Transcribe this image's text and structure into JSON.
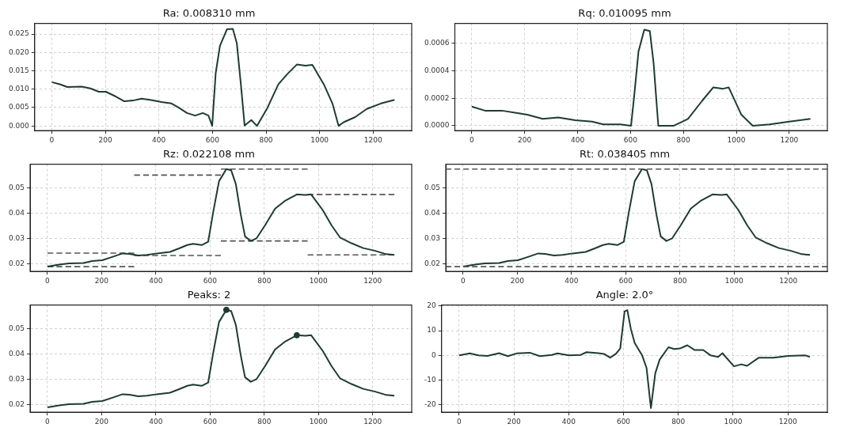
{
  "chart_data": [
    {
      "type": "line",
      "title": "Ra: 0.008310 mm",
      "marker": "none",
      "line_style": "solid",
      "grid": true,
      "x": [
        0,
        32,
        58,
        112,
        144,
        176,
        202,
        239,
        271,
        303,
        335,
        367,
        410,
        447,
        473,
        505,
        535,
        564,
        585,
        599,
        612,
        628,
        654,
        676,
        691,
        707,
        720,
        745,
        766,
        803,
        846,
        878,
        915,
        947,
        973,
        1016,
        1048,
        1071,
        1090,
        1133,
        1176,
        1229,
        1280
      ],
      "series": [
        {
          "color": "#1e3b32",
          "values": [
            0.0119,
            0.0113,
            0.0106,
            0.0107,
            0.0102,
            0.0093,
            0.0093,
            0.008,
            0.0067,
            0.0069,
            0.0074,
            0.0071,
            0.0065,
            0.0061,
            0.005,
            0.0035,
            0.0028,
            0.0035,
            0.0028,
            0.0,
            0.0143,
            0.0218,
            0.0263,
            0.0264,
            0.0225,
            0.0106,
            0.0001,
            0.0016,
            0.0,
            0.0046,
            0.0113,
            0.014,
            0.0167,
            0.0164,
            0.0166,
            0.0113,
            0.0061,
            0.0,
            0.001,
            0.0024,
            0.0046,
            0.0061,
            0.0071
          ]
        }
      ],
      "xlim": [
        -64,
        1344
      ],
      "xticks": [
        0,
        200,
        400,
        600,
        800,
        1000,
        1200
      ],
      "ylim": [
        -0.0013,
        0.0279
      ],
      "yticks": [
        {
          "value": 0,
          "label": "0.000"
        },
        {
          "value": 0.005,
          "label": "0.005"
        },
        {
          "value": 0.01,
          "label": "0.010"
        },
        {
          "value": 0.015,
          "label": "0.015"
        },
        {
          "value": 0.02,
          "label": "0.020"
        },
        {
          "value": 0.025,
          "label": "0.025"
        }
      ]
    },
    {
      "type": "line",
      "title": "Rq: 0.010095 mm",
      "marker": "none",
      "line_style": "solid",
      "grid": true,
      "x": [
        0,
        50,
        114,
        178,
        210,
        268,
        327,
        391,
        455,
        497,
        561,
        602,
        614,
        630,
        652,
        673,
        687,
        705,
        764,
        817,
        870,
        913,
        950,
        971,
        1019,
        1062,
        1126,
        1200,
        1280
      ],
      "series": [
        {
          "color": "#1e3b32",
          "values": [
            0.00014,
            0.00011,
            0.00011,
            9e-05,
            8e-05,
            5e-05,
            6e-05,
            4e-05,
            3e-05,
            1e-05,
            1e-05,
            0,
            0.00022,
            0.00054,
            0.0007,
            0.00069,
            0.00046,
            0,
            0,
            5e-05,
            0.00018,
            0.00028,
            0.00027,
            0.00028,
            8e-05,
            0,
            1e-05,
            3e-05,
            5e-05
          ]
        }
      ],
      "xlim": [
        -64,
        1344
      ],
      "xticks": [
        0,
        200,
        400,
        600,
        800,
        1000,
        1200
      ],
      "ylim": [
        -3.6e-05,
        0.000746
      ],
      "yticks": [
        {
          "value": 0,
          "label": "0.0000"
        },
        {
          "value": 0.0002,
          "label": "0.0002"
        },
        {
          "value": 0.0004,
          "label": "0.0004"
        },
        {
          "value": 0.0006,
          "label": "0.0006"
        }
      ]
    },
    {
      "type": "line",
      "title": "Rz: 0.022108 mm",
      "marker": "none",
      "line_style": "solid",
      "grid": true,
      "x": [
        0,
        48,
        80,
        133,
        165,
        202,
        239,
        277,
        303,
        335,
        367,
        404,
        452,
        484,
        516,
        537,
        569,
        593,
        612,
        633,
        660,
        678,
        695,
        713,
        729,
        750,
        771,
        803,
        840,
        878,
        920,
        952,
        973,
        1016,
        1048,
        1080,
        1122,
        1165,
        1207,
        1250,
        1280
      ],
      "series": [
        {
          "color": "#1e3b32",
          "values": [
            0.0189,
            0.0198,
            0.0202,
            0.0203,
            0.0211,
            0.0214,
            0.0227,
            0.0241,
            0.0239,
            0.0233,
            0.0235,
            0.0241,
            0.0247,
            0.026,
            0.0274,
            0.0279,
            0.0274,
            0.0287,
            0.0406,
            0.0525,
            0.0573,
            0.0568,
            0.0514,
            0.0395,
            0.0308,
            0.029,
            0.03,
            0.0352,
            0.0417,
            0.0449,
            0.0473,
            0.0471,
            0.0473,
            0.0411,
            0.0352,
            0.0303,
            0.0281,
            0.0262,
            0.0252,
            0.0238,
            0.0235
          ]
        },
        {
          "color": "#555555",
          "line_style": "dashed",
          "x": [
            0,
            320
          ],
          "values": [
            0.0242,
            0.0242
          ]
        },
        {
          "color": "#555555",
          "line_style": "dashed",
          "x": [
            0,
            320
          ],
          "values": [
            0.0189,
            0.0189
          ]
        },
        {
          "color": "#555555",
          "line_style": "dashed",
          "x": [
            320,
            640
          ],
          "values": [
            0.0549,
            0.0549
          ]
        },
        {
          "color": "#555555",
          "line_style": "dashed",
          "x": [
            320,
            640
          ],
          "values": [
            0.0233,
            0.0233
          ]
        },
        {
          "color": "#555555",
          "line_style": "dashed",
          "x": [
            640,
            960
          ],
          "values": [
            0.0573,
            0.0573
          ]
        },
        {
          "color": "#555555",
          "line_style": "dashed",
          "x": [
            640,
            960
          ],
          "values": [
            0.029,
            0.029
          ]
        },
        {
          "color": "#555555",
          "line_style": "dashed",
          "x": [
            960,
            1280
          ],
          "values": [
            0.0473,
            0.0473
          ]
        },
        {
          "color": "#555555",
          "line_style": "dashed",
          "x": [
            960,
            1280
          ],
          "values": [
            0.0235,
            0.0235
          ]
        }
      ],
      "xlim": [
        -64,
        1344
      ],
      "xticks": [
        0,
        200,
        400,
        600,
        800,
        1000,
        1200
      ],
      "ylim": [
        0.017,
        0.0592
      ],
      "yticks": [
        0.02,
        0.03,
        0.04,
        0.05
      ]
    },
    {
      "type": "line",
      "title": "Rt: 0.038405 mm",
      "marker": "none",
      "line_style": "solid",
      "grid": true,
      "x": [
        0,
        48,
        80,
        133,
        165,
        202,
        239,
        277,
        303,
        335,
        367,
        404,
        452,
        484,
        516,
        537,
        569,
        593,
        612,
        633,
        660,
        678,
        695,
        713,
        729,
        750,
        771,
        803,
        840,
        878,
        920,
        952,
        973,
        1016,
        1048,
        1080,
        1122,
        1165,
        1207,
        1250,
        1280
      ],
      "series": [
        {
          "color": "#1e3b32",
          "values": [
            0.0189,
            0.0198,
            0.0202,
            0.0203,
            0.0211,
            0.0214,
            0.0227,
            0.0241,
            0.0239,
            0.0233,
            0.0235,
            0.0241,
            0.0247,
            0.026,
            0.0274,
            0.0279,
            0.0274,
            0.0287,
            0.0406,
            0.0525,
            0.0573,
            0.0568,
            0.0514,
            0.0395,
            0.0308,
            0.029,
            0.03,
            0.0352,
            0.0417,
            0.0449,
            0.0473,
            0.0471,
            0.0473,
            0.0411,
            0.0352,
            0.0303,
            0.0281,
            0.0262,
            0.0252,
            0.0238,
            0.0235
          ]
        }
      ],
      "ref_lines": [
        {
          "axis": "y",
          "value": 0.0573,
          "color": "#555555",
          "line_style": "dashed"
        },
        {
          "axis": "y",
          "value": 0.0189,
          "color": "#555555",
          "line_style": "dashed"
        }
      ],
      "xlim": [
        -64,
        1344
      ],
      "xticks": [
        0,
        200,
        400,
        600,
        800,
        1000,
        1200
      ],
      "ylim": [
        0.017,
        0.0592
      ],
      "yticks": [
        0.02,
        0.03,
        0.04,
        0.05
      ]
    },
    {
      "type": "line",
      "title": "Peaks: 2",
      "marker": "none",
      "line_style": "solid",
      "grid": true,
      "x": [
        0,
        48,
        80,
        133,
        165,
        202,
        239,
        277,
        303,
        335,
        367,
        404,
        452,
        484,
        516,
        537,
        569,
        593,
        612,
        633,
        660,
        678,
        695,
        713,
        729,
        750,
        771,
        803,
        840,
        878,
        920,
        952,
        973,
        1016,
        1048,
        1080,
        1122,
        1165,
        1207,
        1250,
        1280
      ],
      "series": [
        {
          "color": "#1e3b32",
          "values": [
            0.0189,
            0.0198,
            0.0202,
            0.0203,
            0.0211,
            0.0214,
            0.0227,
            0.0241,
            0.0239,
            0.0233,
            0.0235,
            0.0241,
            0.0247,
            0.026,
            0.0274,
            0.0279,
            0.0274,
            0.0287,
            0.0406,
            0.0525,
            0.0573,
            0.0568,
            0.0514,
            0.0395,
            0.0308,
            0.029,
            0.03,
            0.0352,
            0.0417,
            0.0449,
            0.0473,
            0.0471,
            0.0473,
            0.0411,
            0.0352,
            0.0303,
            0.0281,
            0.0262,
            0.0252,
            0.0238,
            0.0235
          ]
        },
        {
          "type": "scatter",
          "marker": "circle",
          "color": "#1e3b32",
          "x": [
            660,
            920
          ],
          "values": [
            0.0573,
            0.0473
          ]
        }
      ],
      "xlim": [
        -64,
        1344
      ],
      "xticks": [
        0,
        200,
        400,
        600,
        800,
        1000,
        1200
      ],
      "ylim": [
        0.017,
        0.0592
      ],
      "yticks": [
        0.02,
        0.03,
        0.04,
        0.05
      ]
    },
    {
      "type": "line",
      "title": "Angle: 2.0°",
      "marker": "none",
      "line_style": "solid",
      "grid": true,
      "x": [
        0,
        39,
        71,
        103,
        146,
        178,
        210,
        258,
        295,
        338,
        359,
        401,
        444,
        465,
        508,
        529,
        551,
        572,
        588,
        604,
        614,
        627,
        641,
        668,
        684,
        700,
        716,
        732,
        764,
        785,
        806,
        833,
        859,
        891,
        918,
        945,
        961,
        1003,
        1030,
        1051,
        1094,
        1147,
        1200,
        1264,
        1280
      ],
      "series": [
        {
          "color": "#1e3b32",
          "values": [
            0,
            0.8,
            0,
            -0.2,
            0.9,
            -0.3,
            0.8,
            1.1,
            -0.3,
            0.2,
            0.8,
            0,
            0.2,
            1.3,
            0.9,
            0.6,
            -0.9,
            0.6,
            2.8,
            17.8,
            18.3,
            10.6,
            5,
            0,
            -5,
            -21.3,
            -7.2,
            -1.7,
            3.3,
            2.6,
            2.8,
            4.1,
            2.2,
            2.2,
            0,
            -0.6,
            0.9,
            -4.4,
            -3.6,
            -4.2,
            -0.9,
            -0.9,
            -0.2,
            0,
            -0.6
          ]
        }
      ],
      "xlim": [
        -64,
        1344
      ],
      "xticks": [
        0,
        200,
        400,
        600,
        800,
        1000,
        1200
      ],
      "ylim": [
        -22.97,
        20.37
      ],
      "yticks": [
        -20,
        -10,
        0,
        10,
        20
      ]
    }
  ]
}
